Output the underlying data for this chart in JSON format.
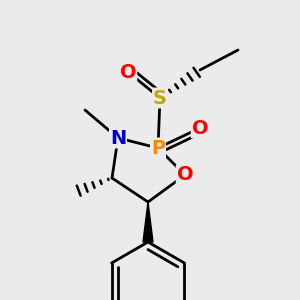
{
  "bg_color": "#ebebeb",
  "colors": {
    "C": "#000000",
    "N": "#0000cc",
    "O": "#ff0000",
    "P": "#ff8800",
    "S": "#bbaa00"
  }
}
